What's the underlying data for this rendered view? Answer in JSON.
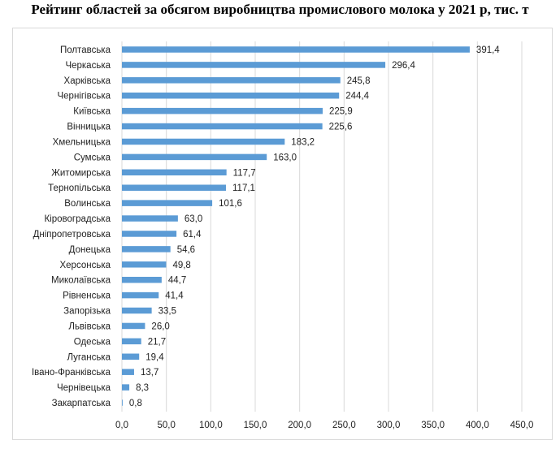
{
  "chart_data": {
    "type": "bar",
    "orientation": "horizontal",
    "title": "Рейтинг областей за обсягом виробництва промислового молока у 2021 р, тис. т",
    "categories": [
      "Полтавська",
      "Черкаська",
      "Харківська",
      "Чернігівська",
      "Київська",
      "Вінницька",
      "Хмельницька",
      "Сумська",
      "Житомирська",
      "Тернопільська",
      "Волинська",
      "Кіровоградська",
      "Дніпропетровська",
      "Донецька",
      "Херсонська",
      "Миколаївська",
      "Рівненська",
      "Запорізька",
      "Львівська",
      "Одеська",
      "Луганська",
      "Івано-Франківська",
      "Чернівецька",
      "Закарпатська"
    ],
    "values": [
      391.4,
      296.4,
      245.8,
      244.4,
      225.9,
      225.6,
      183.2,
      163.0,
      117.7,
      117.1,
      101.6,
      63.0,
      61.4,
      54.6,
      49.8,
      44.7,
      41.4,
      33.5,
      26.0,
      21.7,
      19.4,
      13.7,
      8.3,
      0.8
    ],
    "value_labels": [
      "391,4",
      "296,4",
      "245,8",
      "244,4",
      "225,9",
      "225,6",
      "183,2",
      "163,0",
      "117,7",
      "117,1",
      "101,6",
      "63,0",
      "61,4",
      "54,6",
      "49,8",
      "44,7",
      "41,4",
      "33,5",
      "26,0",
      "21,7",
      "19,4",
      "13,7",
      "8,3",
      "0,8"
    ],
    "x_ticks": [
      "0,0",
      "50,0",
      "100,0",
      "150,0",
      "200,0",
      "250,0",
      "300,0",
      "350,0",
      "400,0",
      "450,0"
    ],
    "xlim": [
      0,
      450
    ],
    "grid": true,
    "bar_color": "#5b9bd5",
    "grid_color": "#d9d9d9"
  }
}
